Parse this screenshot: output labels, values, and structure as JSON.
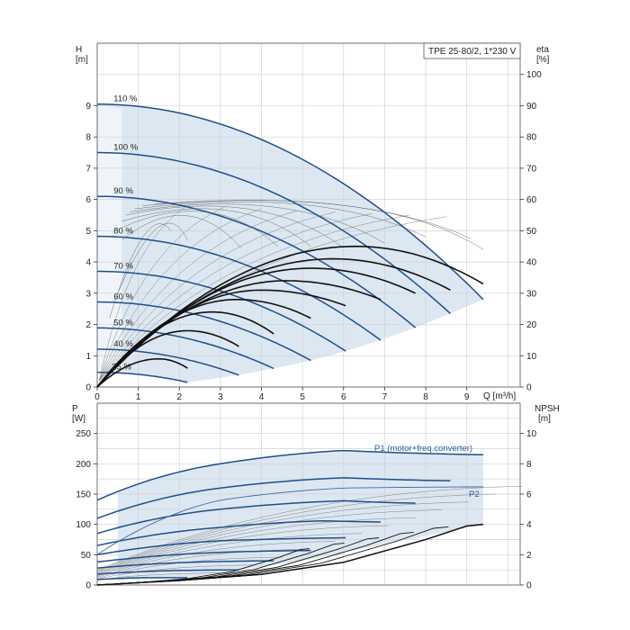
{
  "chart_data": [
    {
      "type": "line",
      "title": "TPE 25-80/2, 1*230 V",
      "x_axis": {
        "label": "Q [m³/h]",
        "range": [
          0,
          10
        ],
        "ticks": [
          "0",
          "1",
          "2",
          "3",
          "4",
          "5",
          "6",
          "7",
          "8",
          "9"
        ]
      },
      "y_left": {
        "label": "H",
        "unit": "[m]",
        "range": [
          0,
          10
        ],
        "ticks": [
          "0",
          "1",
          "2",
          "3",
          "4",
          "5",
          "6",
          "7",
          "8",
          "9"
        ]
      },
      "y_right": {
        "label": "eta",
        "unit": "[%]",
        "range": [
          0,
          100
        ],
        "ticks": [
          "0",
          "10",
          "20",
          "30",
          "40",
          "50",
          "60",
          "70",
          "80",
          "90",
          "100"
        ]
      },
      "grid": true,
      "speed_curves": [
        {
          "name": "110 %",
          "shutoff_head": 9.05,
          "max_flow": 9.4,
          "end_head": 2.8
        },
        {
          "name": "100 %",
          "shutoff_head": 7.5,
          "max_flow": 8.6,
          "end_head": 2.35
        },
        {
          "name": "90 %",
          "shutoff_head": 6.1,
          "max_flow": 7.75,
          "end_head": 1.9
        },
        {
          "name": "80 %",
          "shutoff_head": 4.82,
          "max_flow": 6.9,
          "end_head": 1.5
        },
        {
          "name": "70 %",
          "shutoff_head": 3.7,
          "max_flow": 6.05,
          "end_head": 1.15
        },
        {
          "name": "60 %",
          "shutoff_head": 2.72,
          "max_flow": 5.2,
          "end_head": 0.85
        },
        {
          "name": "50 %",
          "shutoff_head": 1.89,
          "max_flow": 4.3,
          "end_head": 0.59
        },
        {
          "name": "40 %",
          "shutoff_head": 1.21,
          "max_flow": 3.45,
          "end_head": 0.38
        },
        {
          "name": "25 %",
          "shutoff_head": 0.47,
          "max_flow": 2.2,
          "end_head": 0.15
        }
      ],
      "efficiency_curves": [
        {
          "speed": "110 %",
          "peak_q": 6.3,
          "peak_eta": 45,
          "end_q": 9.4,
          "end_eta": 33
        },
        {
          "speed": "100 %",
          "peak_q": 5.75,
          "peak_eta": 41,
          "end_q": 8.6,
          "end_eta": 31
        },
        {
          "speed": "90 %",
          "peak_q": 5.2,
          "peak_eta": 38,
          "end_q": 7.75,
          "end_eta": 30
        },
        {
          "speed": "80 %",
          "peak_q": 4.6,
          "peak_eta": 34,
          "end_q": 6.9,
          "end_eta": 28
        },
        {
          "speed": "70 %",
          "peak_q": 4.0,
          "peak_eta": 31,
          "end_q": 6.05,
          "end_eta": 26
        },
        {
          "speed": "60 %",
          "peak_q": 3.4,
          "peak_eta": 28,
          "end_q": 5.2,
          "end_eta": 22
        },
        {
          "speed": "50 %",
          "peak_q": 2.8,
          "peak_eta": 24,
          "end_q": 4.3,
          "end_eta": 17
        },
        {
          "speed": "40 %",
          "peak_q": 2.2,
          "peak_eta": 18,
          "end_q": 3.45,
          "end_eta": 13
        },
        {
          "speed": "25 %",
          "peak_q": 1.5,
          "peak_eta": 9,
          "end_q": 2.2,
          "end_eta": 6
        }
      ]
    },
    {
      "type": "line",
      "x_axis": {
        "label": "",
        "range": [
          0,
          10
        ]
      },
      "y_left": {
        "label": "P",
        "unit": "[W]",
        "range": [
          0,
          250
        ],
        "ticks": [
          "0",
          "50",
          "100",
          "150",
          "200",
          "250"
        ]
      },
      "y_right": {
        "label": "NPSH",
        "unit": "[m]",
        "range": [
          0,
          10
        ],
        "ticks": [
          "0",
          "2",
          "4",
          "6",
          "8",
          "10"
        ]
      },
      "grid": true,
      "annotations": [
        "P1 (motor+freq.converter)",
        "P2"
      ],
      "p1_curves": [
        {
          "speed": "110 %",
          "q": [
            0,
            3,
            6,
            9.4
          ],
          "p": [
            140,
            200,
            222,
            215
          ]
        },
        {
          "speed": "100 %",
          "q": [
            0,
            3,
            6,
            8.6
          ],
          "p": [
            110,
            160,
            177,
            172
          ]
        },
        {
          "speed": "90 %",
          "q": [
            0,
            3,
            6,
            7.75
          ],
          "p": [
            85,
            125,
            139,
            135
          ]
        },
        {
          "speed": "80 %",
          "q": [
            0,
            3,
            5.5,
            6.9
          ],
          "p": [
            65,
            95,
            106,
            104
          ]
        },
        {
          "speed": "70 %",
          "q": [
            0,
            3,
            6.05
          ],
          "p": [
            50,
            73,
            78
          ]
        },
        {
          "speed": "60 %",
          "q": [
            0,
            3,
            5.2
          ],
          "p": [
            38,
            54,
            57
          ]
        },
        {
          "speed": "50 %",
          "q": [
            0,
            2.5,
            4.3
          ],
          "p": [
            28,
            38,
            40
          ]
        },
        {
          "speed": "40 %",
          "q": [
            0,
            2,
            3.45
          ],
          "p": [
            18,
            24,
            25
          ]
        },
        {
          "speed": "25 %",
          "q": [
            0,
            1.1,
            2.2
          ],
          "p": [
            9,
            12,
            12
          ]
        }
      ],
      "p2_curve": {
        "speed": "110 %",
        "q": [
          0,
          3,
          6,
          9.4
        ],
        "p": [
          50,
          140,
          160,
          162
        ]
      },
      "npsh_curve": {
        "q": [
          0,
          2,
          4,
          6,
          8,
          9,
          9.4
        ],
        "npsh": [
          0,
          0.3,
          0.7,
          1.5,
          3.0,
          3.9,
          4.0
        ]
      }
    }
  ]
}
